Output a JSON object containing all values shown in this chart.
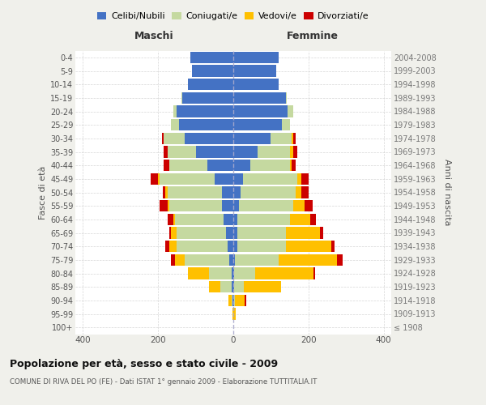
{
  "age_groups": [
    "100+",
    "95-99",
    "90-94",
    "85-89",
    "80-84",
    "75-79",
    "70-74",
    "65-69",
    "60-64",
    "55-59",
    "50-54",
    "45-49",
    "40-44",
    "35-39",
    "30-34",
    "25-29",
    "20-24",
    "15-19",
    "10-14",
    "5-9",
    "0-4"
  ],
  "birth_years": [
    "≤ 1908",
    "1909-1913",
    "1914-1918",
    "1919-1923",
    "1924-1928",
    "1929-1933",
    "1934-1938",
    "1939-1943",
    "1944-1948",
    "1949-1953",
    "1954-1958",
    "1959-1963",
    "1964-1968",
    "1969-1973",
    "1974-1978",
    "1979-1983",
    "1984-1988",
    "1989-1993",
    "1994-1998",
    "1999-2003",
    "2004-2008"
  ],
  "colors": {
    "celibi": "#4472c4",
    "coniugati": "#c5d9a0",
    "vedovi": "#ffc000",
    "divorziati": "#cc0000"
  },
  "males": {
    "celibi": [
      0,
      1,
      2,
      5,
      5,
      10,
      15,
      20,
      25,
      30,
      30,
      50,
      70,
      100,
      130,
      145,
      150,
      135,
      120,
      110,
      115
    ],
    "coniugati": [
      0,
      0,
      3,
      30,
      60,
      120,
      135,
      130,
      130,
      140,
      145,
      145,
      100,
      75,
      55,
      20,
      10,
      2,
      0,
      0,
      0
    ],
    "vedovi": [
      0,
      1,
      8,
      30,
      55,
      25,
      20,
      15,
      5,
      5,
      5,
      5,
      0,
      0,
      0,
      0,
      0,
      0,
      0,
      0,
      0
    ],
    "divorziati": [
      0,
      0,
      0,
      0,
      0,
      10,
      10,
      5,
      15,
      20,
      8,
      20,
      15,
      10,
      5,
      0,
      0,
      0,
      0,
      0,
      0
    ]
  },
  "females": {
    "celibi": [
      0,
      1,
      2,
      3,
      3,
      5,
      10,
      10,
      10,
      15,
      20,
      25,
      45,
      65,
      100,
      130,
      145,
      140,
      120,
      115,
      120
    ],
    "coniugati": [
      0,
      0,
      3,
      25,
      55,
      115,
      130,
      130,
      140,
      145,
      145,
      145,
      105,
      85,
      55,
      20,
      15,
      2,
      0,
      0,
      0
    ],
    "vedovi": [
      0,
      5,
      25,
      100,
      155,
      155,
      120,
      90,
      55,
      30,
      15,
      10,
      5,
      10,
      5,
      0,
      0,
      0,
      0,
      0,
      0
    ],
    "divorziati": [
      0,
      0,
      5,
      0,
      5,
      15,
      10,
      10,
      15,
      20,
      20,
      20,
      10,
      10,
      5,
      0,
      0,
      0,
      0,
      0,
      0
    ]
  },
  "title": "Popolazione per età, sesso e stato civile - 2009",
  "subtitle": "COMUNE DI RIVA DEL PO (FE) - Dati ISTAT 1° gennaio 2009 - Elaborazione TUTTITALIA.IT",
  "xlabel_left": "Maschi",
  "xlabel_right": "Femmine",
  "ylabel_left": "Fasce di età",
  "ylabel_right": "Anni di nascita",
  "xlim": 420,
  "bg_color": "#f0f0eb",
  "plot_bg": "#ffffff",
  "grid_color": "#cccccc"
}
